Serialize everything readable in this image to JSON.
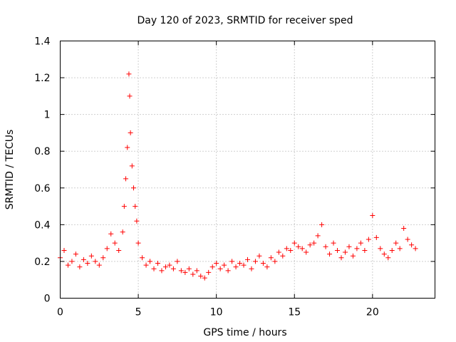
{
  "chart_data": {
    "type": "scatter",
    "title": "Day 120 of 2023, SRMTID for receiver sped",
    "xlabel": "GPS time / hours",
    "ylabel": "SRMTID / TECUs",
    "xlim": [
      0,
      24
    ],
    "ylim": [
      0,
      1.4
    ],
    "xticks": [
      0,
      5,
      10,
      15,
      20
    ],
    "yticks": [
      0,
      0.2,
      0.4,
      0.6,
      0.8,
      1,
      1.2,
      1.4
    ],
    "xtick_labels": [
      "0",
      "5",
      "10",
      "15",
      "20"
    ],
    "ytick_labels": [
      "0",
      "0.2",
      "0.4",
      "0.6",
      "0.8",
      "1",
      "1.2",
      "1.4"
    ],
    "grid": true,
    "marker": "+",
    "color": "#ff0000",
    "series": [
      {
        "name": "SRMTID",
        "x": [
          0.0,
          0.25,
          0.5,
          0.75,
          1.0,
          1.25,
          1.5,
          1.75,
          2.0,
          2.25,
          2.5,
          2.75,
          3.0,
          3.25,
          3.5,
          3.75,
          4.0,
          4.1,
          4.2,
          4.3,
          4.4,
          4.45,
          4.5,
          4.6,
          4.7,
          4.8,
          4.9,
          5.0,
          5.25,
          5.5,
          5.75,
          6.0,
          6.25,
          6.5,
          6.75,
          7.0,
          7.25,
          7.5,
          7.75,
          8.0,
          8.25,
          8.5,
          8.75,
          9.0,
          9.25,
          9.5,
          9.75,
          10.0,
          10.25,
          10.5,
          10.75,
          11.0,
          11.25,
          11.5,
          11.75,
          12.0,
          12.25,
          12.5,
          12.75,
          13.0,
          13.25,
          13.5,
          13.75,
          14.0,
          14.25,
          14.5,
          14.75,
          15.0,
          15.25,
          15.5,
          15.75,
          16.0,
          16.25,
          16.5,
          16.75,
          17.0,
          17.25,
          17.5,
          17.75,
          18.0,
          18.25,
          18.5,
          18.75,
          19.0,
          19.25,
          19.5,
          19.75,
          20.0,
          20.25,
          20.5,
          20.75,
          21.0,
          21.25,
          21.5,
          21.75,
          22.0,
          22.25,
          22.5,
          22.75
        ],
        "y": [
          0.22,
          0.26,
          0.18,
          0.2,
          0.24,
          0.17,
          0.21,
          0.19,
          0.23,
          0.2,
          0.18,
          0.22,
          0.27,
          0.35,
          0.3,
          0.26,
          0.36,
          0.5,
          0.65,
          0.82,
          1.22,
          1.1,
          0.9,
          0.72,
          0.6,
          0.5,
          0.42,
          0.3,
          0.22,
          0.18,
          0.2,
          0.16,
          0.19,
          0.15,
          0.17,
          0.18,
          0.16,
          0.2,
          0.15,
          0.14,
          0.16,
          0.13,
          0.15,
          0.12,
          0.11,
          0.14,
          0.17,
          0.19,
          0.16,
          0.18,
          0.15,
          0.2,
          0.17,
          0.19,
          0.18,
          0.21,
          0.16,
          0.2,
          0.23,
          0.19,
          0.17,
          0.22,
          0.2,
          0.25,
          0.23,
          0.27,
          0.26,
          0.3,
          0.28,
          0.27,
          0.25,
          0.29,
          0.3,
          0.34,
          0.4,
          0.28,
          0.24,
          0.3,
          0.26,
          0.22,
          0.25,
          0.28,
          0.23,
          0.27,
          0.3,
          0.26,
          0.32,
          0.45,
          0.33,
          0.27,
          0.24,
          0.22,
          0.26,
          0.3,
          0.27,
          0.38,
          0.32,
          0.29,
          0.27
        ]
      }
    ]
  }
}
